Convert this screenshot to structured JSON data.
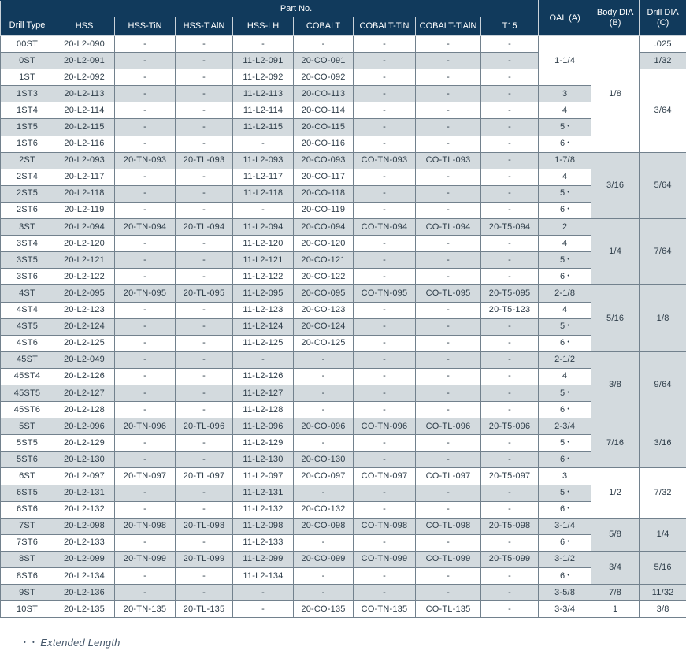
{
  "colors": {
    "header_bg": "#113a5c",
    "row_stripe": "#d3dade",
    "grid_line": "#72818d",
    "footnote_text": "#45576a"
  },
  "table": {
    "header": {
      "drill_type_label": "Drill Type",
      "part_no_label": "Part No.",
      "part_columns": [
        "HSS",
        "HSS-TiN",
        "HSS-TiAlN",
        "HSS-LH",
        "COBALT",
        "COBALT-TiN",
        "COBALT-TiAlN",
        "T15"
      ],
      "oal_label": "OAL (A)",
      "body_dia_line1": "Body DIA",
      "body_dia_line2": "(B)",
      "drill_dia_line1": "Drill DIA",
      "drill_dia_line2": "(C)"
    },
    "rows": [
      {
        "type": "00ST",
        "parts": [
          "20-L2-090",
          "-",
          "-",
          "-",
          "-",
          "-",
          "-",
          "-"
        ],
        "oal": {
          "v": "1-1/4",
          "span": 3
        },
        "body": {
          "v": "1/8",
          "span": 7
        },
        "drill": {
          "v": ".025"
        }
      },
      {
        "type": "0ST",
        "parts": [
          "20-L2-091",
          "-",
          "-",
          "11-L2-091",
          "20-CO-091",
          "-",
          "-",
          "-"
        ],
        "drill": {
          "v": "1/32"
        }
      },
      {
        "type": "1ST",
        "parts": [
          "20-L2-092",
          "-",
          "-",
          "11-L2-092",
          "20-CO-092",
          "-",
          "-",
          "-"
        ],
        "drill": {
          "v": "3/64",
          "span": 5
        }
      },
      {
        "type": "1ST3",
        "parts": [
          "20-L2-113",
          "-",
          "-",
          "11-L2-113",
          "20-CO-113",
          "-",
          "-",
          "-"
        ],
        "oal": {
          "v": "3"
        }
      },
      {
        "type": "1ST4",
        "parts": [
          "20-L2-114",
          "-",
          "-",
          "11-L2-114",
          "20-CO-114",
          "-",
          "-",
          "-"
        ],
        "oal": {
          "v": "4"
        }
      },
      {
        "type": "1ST5",
        "parts": [
          "20-L2-115",
          "-",
          "-",
          "11-L2-115",
          "20-CO-115",
          "-",
          "-",
          "-"
        ],
        "oal": {
          "v": "5",
          "ext": true
        }
      },
      {
        "type": "1ST6",
        "parts": [
          "20-L2-116",
          "-",
          "-",
          "-",
          "20-CO-116",
          "-",
          "-",
          "-"
        ],
        "oal": {
          "v": "6",
          "ext": true
        }
      },
      {
        "type": "2ST",
        "parts": [
          "20-L2-093",
          "20-TN-093",
          "20-TL-093",
          "11-L2-093",
          "20-CO-093",
          "CO-TN-093",
          "CO-TL-093",
          "-"
        ],
        "oal": {
          "v": "1-7/8"
        },
        "body": {
          "v": "3/16",
          "span": 4
        },
        "drill": {
          "v": "5/64",
          "span": 4
        }
      },
      {
        "type": "2ST4",
        "parts": [
          "20-L2-117",
          "-",
          "-",
          "11-L2-117",
          "20-CO-117",
          "-",
          "-",
          "-"
        ],
        "oal": {
          "v": "4"
        }
      },
      {
        "type": "2ST5",
        "parts": [
          "20-L2-118",
          "-",
          "-",
          "11-L2-118",
          "20-CO-118",
          "-",
          "-",
          "-"
        ],
        "oal": {
          "v": "5",
          "ext": true
        }
      },
      {
        "type": "2ST6",
        "parts": [
          "20-L2-119",
          "-",
          "-",
          "-",
          "20-CO-119",
          "-",
          "-",
          "-"
        ],
        "oal": {
          "v": "6",
          "ext": true
        }
      },
      {
        "type": "3ST",
        "parts": [
          "20-L2-094",
          "20-TN-094",
          "20-TL-094",
          "11-L2-094",
          "20-CO-094",
          "CO-TN-094",
          "CO-TL-094",
          "20-T5-094"
        ],
        "oal": {
          "v": "2"
        },
        "body": {
          "v": "1/4",
          "span": 4
        },
        "drill": {
          "v": "7/64",
          "span": 4
        }
      },
      {
        "type": "3ST4",
        "parts": [
          "20-L2-120",
          "-",
          "-",
          "11-L2-120",
          "20-CO-120",
          "-",
          "-",
          "-"
        ],
        "oal": {
          "v": "4"
        }
      },
      {
        "type": "3ST5",
        "parts": [
          "20-L2-121",
          "-",
          "-",
          "11-L2-121",
          "20-CO-121",
          "-",
          "-",
          "-"
        ],
        "oal": {
          "v": "5",
          "ext": true
        }
      },
      {
        "type": "3ST6",
        "parts": [
          "20-L2-122",
          "-",
          "-",
          "11-L2-122",
          "20-CO-122",
          "-",
          "-",
          "-"
        ],
        "oal": {
          "v": "6",
          "ext": true
        }
      },
      {
        "type": "4ST",
        "parts": [
          "20-L2-095",
          "20-TN-095",
          "20-TL-095",
          "11-L2-095",
          "20-CO-095",
          "CO-TN-095",
          "CO-TL-095",
          "20-T5-095"
        ],
        "oal": {
          "v": "2-1/8"
        },
        "body": {
          "v": "5/16",
          "span": 4
        },
        "drill": {
          "v": "1/8",
          "span": 4
        }
      },
      {
        "type": "4ST4",
        "parts": [
          "20-L2-123",
          "-",
          "-",
          "11-L2-123",
          "20-CO-123",
          "-",
          "-",
          "20-T5-123"
        ],
        "oal": {
          "v": "4"
        }
      },
      {
        "type": "4ST5",
        "parts": [
          "20-L2-124",
          "-",
          "-",
          "11-L2-124",
          "20-CO-124",
          "-",
          "-",
          "-"
        ],
        "oal": {
          "v": "5",
          "ext": true
        }
      },
      {
        "type": "4ST6",
        "parts": [
          "20-L2-125",
          "-",
          "-",
          "11-L2-125",
          "20-CO-125",
          "-",
          "-",
          "-"
        ],
        "oal": {
          "v": "6",
          "ext": true
        }
      },
      {
        "type": "45ST",
        "parts": [
          "20-L2-049",
          "-",
          "-",
          "-",
          "-",
          "-",
          "-",
          "-"
        ],
        "oal": {
          "v": "2-1/2"
        },
        "body": {
          "v": "3/8",
          "span": 4
        },
        "drill": {
          "v": "9/64",
          "span": 4
        }
      },
      {
        "type": "45ST4",
        "parts": [
          "20-L2-126",
          "-",
          "-",
          "11-L2-126",
          "-",
          "-",
          "-",
          "-"
        ],
        "oal": {
          "v": "4"
        }
      },
      {
        "type": "45ST5",
        "parts": [
          "20-L2-127",
          "-",
          "-",
          "11-L2-127",
          "-",
          "-",
          "-",
          "-"
        ],
        "oal": {
          "v": "5",
          "ext": true
        }
      },
      {
        "type": "45ST6",
        "parts": [
          "20-L2-128",
          "-",
          "-",
          "11-L2-128",
          "-",
          "-",
          "-",
          "-"
        ],
        "oal": {
          "v": "6",
          "ext": true
        }
      },
      {
        "type": "5ST",
        "parts": [
          "20-L2-096",
          "20-TN-096",
          "20-TL-096",
          "11-L2-096",
          "20-CO-096",
          "CO-TN-096",
          "CO-TL-096",
          "20-T5-096"
        ],
        "oal": {
          "v": "2-3/4"
        },
        "body": {
          "v": "7/16",
          "span": 3
        },
        "drill": {
          "v": "3/16",
          "span": 3
        }
      },
      {
        "type": "5ST5",
        "parts": [
          "20-L2-129",
          "-",
          "-",
          "11-L2-129",
          "-",
          "-",
          "-",
          "-"
        ],
        "oal": {
          "v": "5",
          "ext": true
        }
      },
      {
        "type": "5ST6",
        "parts": [
          "20-L2-130",
          "-",
          "-",
          "11-L2-130",
          "20-CO-130",
          "-",
          "-",
          "-"
        ],
        "oal": {
          "v": "6",
          "ext": true
        }
      },
      {
        "type": "6ST",
        "parts": [
          "20-L2-097",
          "20-TN-097",
          "20-TL-097",
          "11-L2-097",
          "20-CO-097",
          "CO-TN-097",
          "CO-TL-097",
          "20-T5-097"
        ],
        "oal": {
          "v": "3"
        },
        "body": {
          "v": "1/2",
          "span": 3
        },
        "drill": {
          "v": "7/32",
          "span": 3
        }
      },
      {
        "type": "6ST5",
        "parts": [
          "20-L2-131",
          "-",
          "-",
          "11-L2-131",
          "-",
          "-",
          "-",
          "-"
        ],
        "oal": {
          "v": "5",
          "ext": true
        }
      },
      {
        "type": "6ST6",
        "parts": [
          "20-L2-132",
          "-",
          "-",
          "11-L2-132",
          "20-CO-132",
          "-",
          "-",
          "-"
        ],
        "oal": {
          "v": "6",
          "ext": true
        }
      },
      {
        "type": "7ST",
        "parts": [
          "20-L2-098",
          "20-TN-098",
          "20-TL-098",
          "11-L2-098",
          "20-CO-098",
          "CO-TN-098",
          "CO-TL-098",
          "20-T5-098"
        ],
        "oal": {
          "v": "3-1/4"
        },
        "body": {
          "v": "5/8",
          "span": 2
        },
        "drill": {
          "v": "1/4",
          "span": 2
        }
      },
      {
        "type": "7ST6",
        "parts": [
          "20-L2-133",
          "-",
          "-",
          "11-L2-133",
          "-",
          "-",
          "-",
          "-"
        ],
        "oal": {
          "v": "6",
          "ext": true
        }
      },
      {
        "type": "8ST",
        "parts": [
          "20-L2-099",
          "20-TN-099",
          "20-TL-099",
          "11-L2-099",
          "20-CO-099",
          "CO-TN-099",
          "CO-TL-099",
          "20-T5-099"
        ],
        "oal": {
          "v": "3-1/2"
        },
        "body": {
          "v": "3/4",
          "span": 2
        },
        "drill": {
          "v": "5/16",
          "span": 2
        }
      },
      {
        "type": "8ST6",
        "parts": [
          "20-L2-134",
          "-",
          "-",
          "11-L2-134",
          "-",
          "-",
          "-",
          "-"
        ],
        "oal": {
          "v": "6",
          "ext": true
        }
      },
      {
        "type": "9ST",
        "parts": [
          "20-L2-136",
          "-",
          "-",
          "-",
          "-",
          "-",
          "-",
          "-"
        ],
        "oal": {
          "v": "3-5/8"
        },
        "body": {
          "v": "7/8"
        },
        "drill": {
          "v": "11/32"
        }
      },
      {
        "type": "10ST",
        "parts": [
          "20-L2-135",
          "20-TN-135",
          "20-TL-135",
          "-",
          "20-CO-135",
          "CO-TN-135",
          "CO-TL-135",
          "-"
        ],
        "oal": {
          "v": "3-3/4"
        },
        "body": {
          "v": "1"
        },
        "drill": {
          "v": "3/8"
        }
      }
    ]
  },
  "footnote": {
    "marker": "• •",
    "text": "Extended Length"
  }
}
